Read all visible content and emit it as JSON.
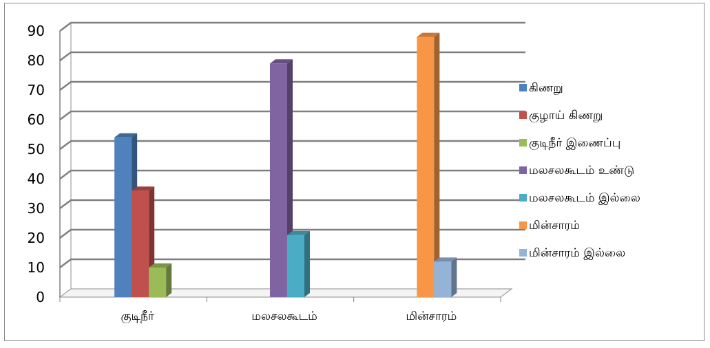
{
  "chart_data": {
    "type": "bar",
    "style": "3d-clustered-column",
    "categories": [
      "குடிநீர்",
      "மலசலகூடம்",
      "மின்சாரம்"
    ],
    "series": [
      {
        "name": "கிணறு",
        "color": "#4F81BD",
        "values": [
          54,
          null,
          null
        ]
      },
      {
        "name": "குழாய் கிணறு",
        "color": "#C0504D",
        "values": [
          36,
          null,
          null
        ]
      },
      {
        "name": "குடிநீர் இணைப்பு",
        "color": "#9BBB59",
        "values": [
          10,
          null,
          null
        ]
      },
      {
        "name": "மலசலகூடம் உண்டு",
        "color": "#8064A2",
        "values": [
          null,
          79,
          null
        ]
      },
      {
        "name": "மலசலகூடம் இல்லை",
        "color": "#4BACC6",
        "values": [
          null,
          21,
          null
        ]
      },
      {
        "name": "மின்சாரம்",
        "color": "#F79646",
        "values": [
          null,
          null,
          88
        ]
      },
      {
        "name": "மின்சாரம் இல்லை",
        "color": "#95B3D7",
        "values": [
          null,
          null,
          12
        ]
      }
    ],
    "y_ticks": [
      "0",
      "10",
      "20",
      "30",
      "40",
      "50",
      "60",
      "70",
      "80",
      "90"
    ],
    "ylim": [
      0,
      90
    ],
    "grid": true,
    "legend_position": "right",
    "title": "",
    "xlabel": "",
    "ylabel": ""
  }
}
